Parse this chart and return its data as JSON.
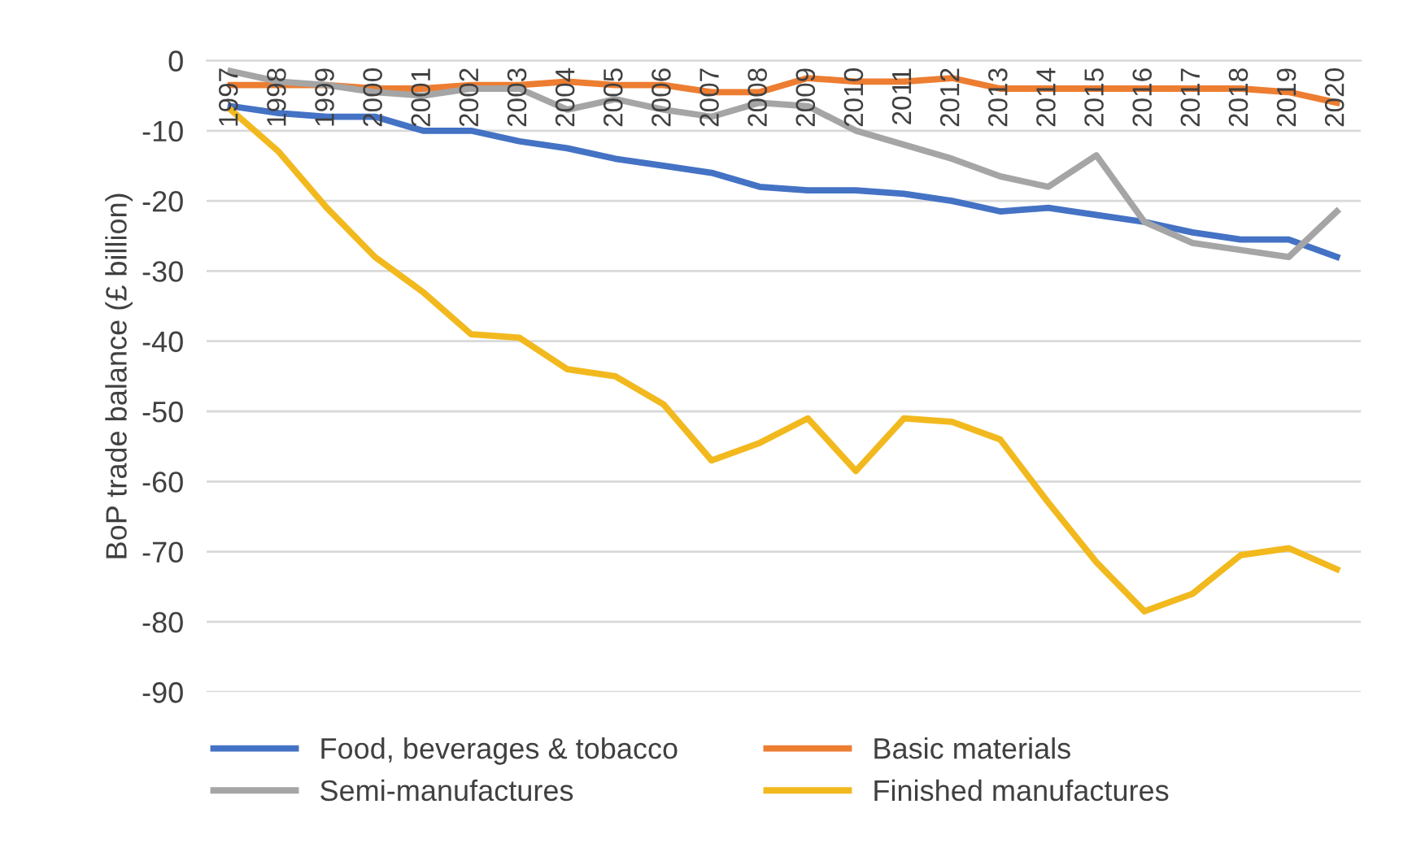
{
  "chart_data": {
    "type": "line",
    "ylabel": "BoP trade balance (£ billion)",
    "categories": [
      "1997",
      "1998",
      "1999",
      "2000",
      "2001",
      "2002",
      "2003",
      "2004",
      "2005",
      "2006",
      "2007",
      "2008",
      "2009",
      "2010",
      "2011",
      "2012",
      "2013",
      "2014",
      "2015",
      "2016",
      "2017",
      "2018",
      "2019",
      "2020"
    ],
    "series": [
      {
        "name": "Food, beverages & tobacco",
        "color": "#4472c4",
        "values": [
          -6.5,
          -7.5,
          -8,
          -8,
          -10,
          -10,
          -11.5,
          -12.5,
          -14,
          -15,
          -16,
          -18,
          -18.5,
          -18.5,
          -19,
          -20,
          -21.5,
          -21,
          -22,
          -23,
          -24.5,
          -25.5,
          -25.5,
          -28
        ]
      },
      {
        "name": "Basic materials",
        "color": "#ed7d31",
        "values": [
          -3.5,
          -3.5,
          -3.5,
          -4,
          -4,
          -3.5,
          -3.5,
          -3,
          -3.5,
          -3.5,
          -4.5,
          -4.5,
          -2.5,
          -3,
          -3,
          -2.5,
          -4,
          -4,
          -4,
          -4,
          -4,
          -4,
          -4.5,
          -6
        ]
      },
      {
        "name": "Semi-manufactures",
        "color": "#a5a5a5",
        "values": [
          -1.5,
          -3,
          -3.5,
          -4.5,
          -5,
          -4,
          -4,
          -7,
          -5.5,
          -7,
          -8,
          -6,
          -6.5,
          -10,
          -12,
          -14,
          -16.5,
          -18,
          -13.5,
          -23,
          -26,
          -27,
          -28,
          -21.5
        ]
      },
      {
        "name": "Finished manufactures",
        "color": "#f2b91e",
        "values": [
          -7,
          -13,
          -21,
          -28,
          -33,
          -39,
          -39.5,
          -44,
          -45,
          -49,
          -57,
          -54.5,
          -51,
          -58.5,
          -51,
          -51.5,
          -54,
          -63,
          -71.5,
          -78.5,
          -76,
          -70.5,
          -69.5,
          -72.5
        ]
      }
    ],
    "ylim": [
      -90,
      0
    ],
    "yticks": [
      0,
      -10,
      -20,
      -30,
      -40,
      -50,
      -60,
      -70,
      -80,
      -90
    ],
    "grid": "y",
    "legend": "bottom",
    "marker": "none",
    "line_style": "solid"
  }
}
